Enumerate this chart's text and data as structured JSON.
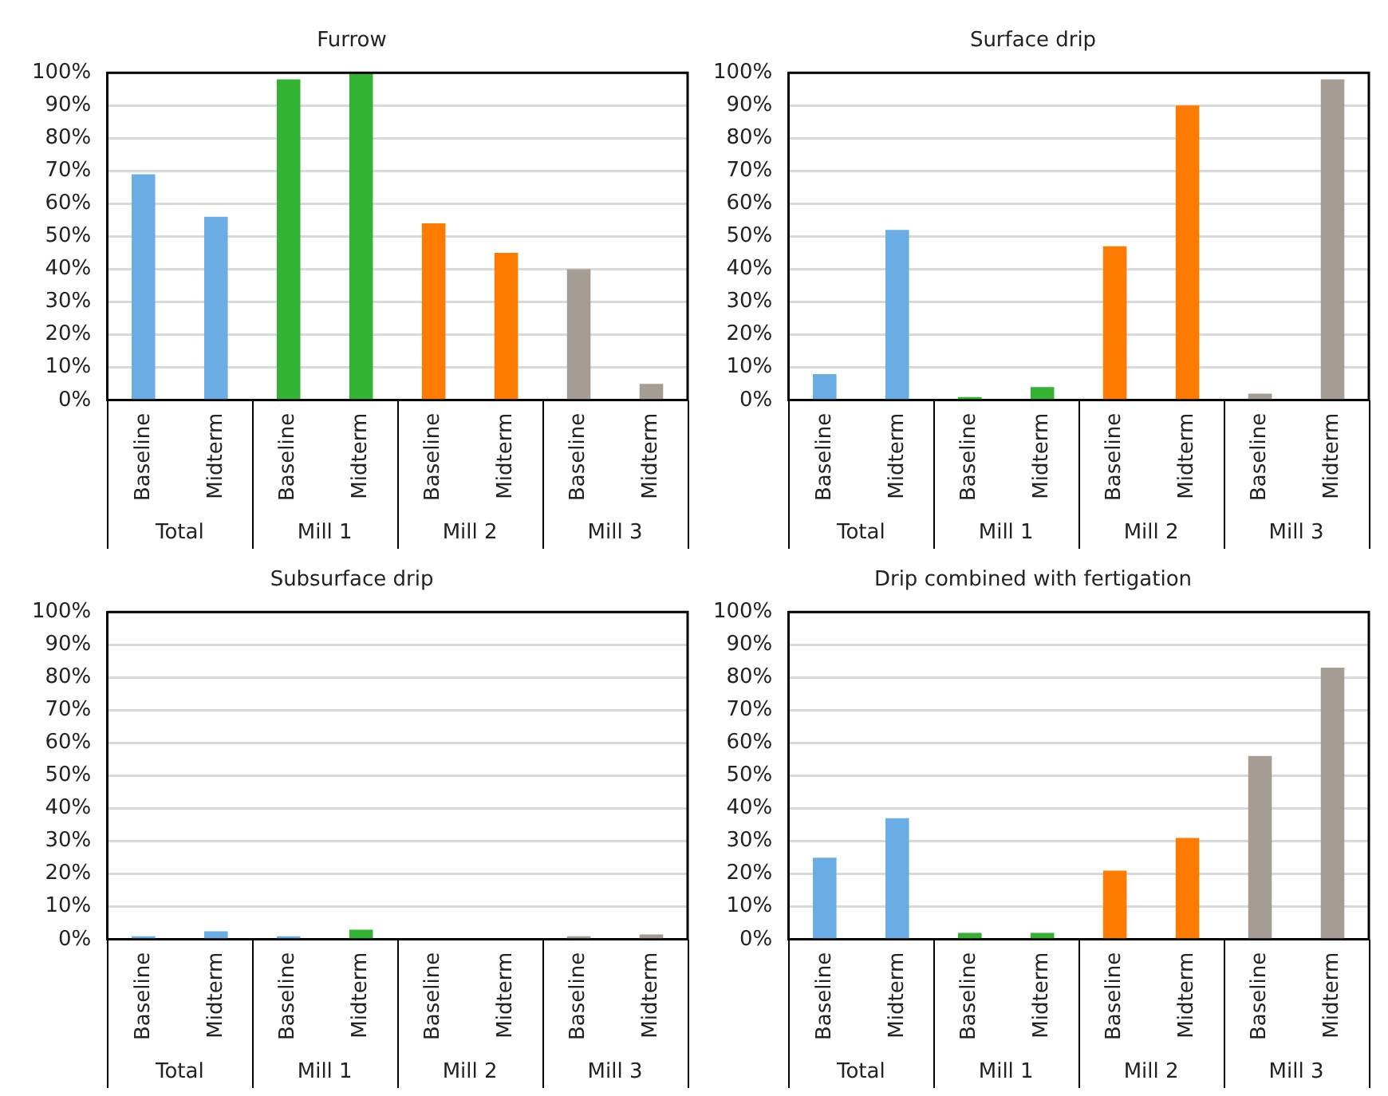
{
  "chart_data": [
    {
      "type": "bar",
      "title": "Furrow",
      "categories": [
        "Baseline",
        "Midterm",
        "Baseline",
        "Midterm",
        "Baseline",
        "Midterm",
        "Baseline",
        "Midterm"
      ],
      "values": [
        69,
        56,
        98,
        100,
        54,
        45,
        40,
        5
      ],
      "colors": [
        "#6aade4",
        "#6aade4",
        "#33b233",
        "#33b233",
        "#ff7b00",
        "#ff7b00",
        "#a59c94",
        "#a59c94"
      ],
      "ylim": [
        0,
        100
      ],
      "yticks": [
        {
          "value": 0,
          "label": "0%"
        },
        {
          "value": 10,
          "label": "10%"
        },
        {
          "value": 20,
          "label": "20%"
        },
        {
          "value": 30,
          "label": "30%"
        },
        {
          "value": 40,
          "label": "40%"
        },
        {
          "value": 50,
          "label": "50%"
        },
        {
          "value": 60,
          "label": "60%"
        },
        {
          "value": 70,
          "label": "70%"
        },
        {
          "value": 80,
          "label": "80%"
        },
        {
          "value": 90,
          "label": "90%"
        },
        {
          "value": 100,
          "label": "100%"
        }
      ],
      "grid": "y",
      "annotations": [
        "Total",
        "Mill 1",
        "Mill 2",
        "Mill 3"
      ]
    },
    {
      "type": "bar",
      "title": "Surface drip",
      "categories": [
        "Baseline",
        "Midterm",
        "Baseline",
        "Midterm",
        "Baseline",
        "Midterm",
        "Baseline",
        "Midterm"
      ],
      "values": [
        8,
        52,
        1,
        4,
        47,
        90,
        2,
        98
      ],
      "colors": [
        "#6aade4",
        "#6aade4",
        "#33b233",
        "#33b233",
        "#ff7b00",
        "#ff7b00",
        "#a59c94",
        "#a59c94"
      ],
      "ylim": [
        0,
        100
      ],
      "yticks": [
        {
          "value": 0,
          "label": "0%"
        },
        {
          "value": 10,
          "label": "10%"
        },
        {
          "value": 20,
          "label": "20%"
        },
        {
          "value": 30,
          "label": "30%"
        },
        {
          "value": 40,
          "label": "40%"
        },
        {
          "value": 50,
          "label": "50%"
        },
        {
          "value": 60,
          "label": "60%"
        },
        {
          "value": 70,
          "label": "70%"
        },
        {
          "value": 80,
          "label": "80%"
        },
        {
          "value": 90,
          "label": "90%"
        },
        {
          "value": 100,
          "label": "100%"
        }
      ],
      "grid": "y",
      "annotations": [
        "Total",
        "Mill 1",
        "Mill 2",
        "Mill 3"
      ]
    },
    {
      "type": "bar",
      "title": "Subsurface drip",
      "categories": [
        "Baseline",
        "Midterm",
        "Baseline",
        "Midterm",
        "Baseline",
        "Midterm",
        "Baseline",
        "Midterm"
      ],
      "values": [
        1,
        2.5,
        1,
        3,
        0,
        0,
        1,
        1.5
      ],
      "colors": [
        "#6aade4",
        "#6aade4",
        "#6aade4",
        "#33b233",
        "#ff7b00",
        "#ff7b00",
        "#a59c94",
        "#a59c94"
      ],
      "ylim": [
        0,
        100
      ],
      "yticks": [
        {
          "value": 0,
          "label": "0%"
        },
        {
          "value": 10,
          "label": "10%"
        },
        {
          "value": 20,
          "label": "20%"
        },
        {
          "value": 30,
          "label": "30%"
        },
        {
          "value": 40,
          "label": "40%"
        },
        {
          "value": 50,
          "label": "50%"
        },
        {
          "value": 60,
          "label": "60%"
        },
        {
          "value": 70,
          "label": "70%"
        },
        {
          "value": 80,
          "label": "80%"
        },
        {
          "value": 90,
          "label": "90%"
        },
        {
          "value": 100,
          "label": "100%"
        }
      ],
      "grid": "y",
      "annotations": [
        "Total",
        "Mill 1",
        "Mill 2",
        "Mill 3"
      ]
    },
    {
      "type": "bar",
      "title": "Drip combined with fertigation",
      "categories": [
        "Baseline",
        "Midterm",
        "Baseline",
        "Midterm",
        "Baseline",
        "Midterm",
        "Baseline",
        "Midterm"
      ],
      "values": [
        25,
        37,
        2,
        2,
        21,
        31,
        56,
        83
      ],
      "colors": [
        "#6aade4",
        "#6aade4",
        "#33b233",
        "#33b233",
        "#ff7b00",
        "#ff7b00",
        "#a59c94",
        "#a59c94"
      ],
      "ylim": [
        0,
        100
      ],
      "yticks": [
        {
          "value": 0,
          "label": "0%"
        },
        {
          "value": 10,
          "label": "10%"
        },
        {
          "value": 20,
          "label": "20%"
        },
        {
          "value": 30,
          "label": "30%"
        },
        {
          "value": 40,
          "label": "40%"
        },
        {
          "value": 50,
          "label": "50%"
        },
        {
          "value": 60,
          "label": "60%"
        },
        {
          "value": 70,
          "label": "70%"
        },
        {
          "value": 80,
          "label": "80%"
        },
        {
          "value": 90,
          "label": "90%"
        },
        {
          "value": 100,
          "label": "100%"
        }
      ],
      "grid": "y",
      "annotations": [
        "Total",
        "Mill 1",
        "Mill 2",
        "Mill 3"
      ]
    }
  ]
}
